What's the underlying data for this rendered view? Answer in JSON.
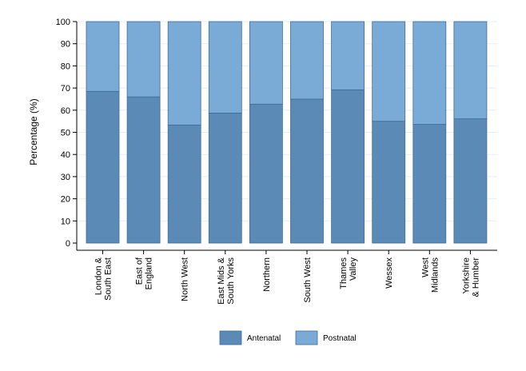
{
  "chart_data": {
    "type": "bar",
    "stacked": true,
    "xlabel": "",
    "ylabel": "Percentage (%)",
    "ylim": [
      0,
      100
    ],
    "yticks": [
      0,
      10,
      20,
      30,
      40,
      50,
      60,
      70,
      80,
      90,
      100
    ],
    "grid": true,
    "legend_position": "bottom",
    "categories": [
      [
        "London &",
        "South East"
      ],
      [
        "East of",
        "England"
      ],
      [
        "North West"
      ],
      [
        "East Mids &",
        "South Yorks"
      ],
      [
        "Northern"
      ],
      [
        "South West"
      ],
      [
        "Thames",
        "Valley"
      ],
      [
        "Wessex"
      ],
      [
        "West",
        "Midlands"
      ],
      [
        "Yorkshire",
        "& Humber"
      ]
    ],
    "series": [
      {
        "name": "Antenatal",
        "color": "#5b8ab7",
        "values": [
          68.5,
          66.0,
          53.3,
          58.7,
          62.7,
          65.0,
          69.2,
          55.0,
          53.6,
          56.1
        ]
      },
      {
        "name": "Postnatal",
        "color": "#7aaad6",
        "values": [
          31.5,
          34.0,
          46.7,
          41.3,
          37.3,
          35.0,
          30.8,
          45.0,
          46.4,
          43.9
        ]
      }
    ]
  }
}
